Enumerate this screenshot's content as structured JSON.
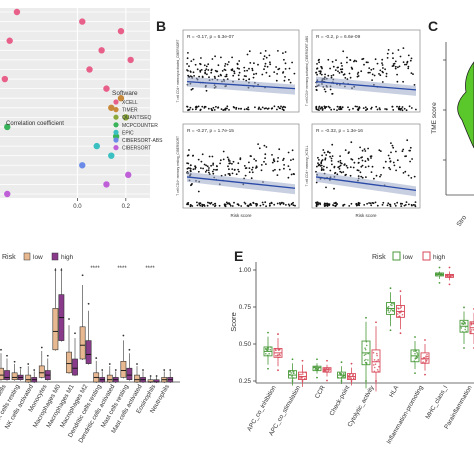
{
  "panel_labels": {
    "b": "B",
    "c": "C",
    "e": "E"
  },
  "chart_data": [
    {
      "panel": "A-top",
      "type": "scatter",
      "xlabel": "Correlation coefficient",
      "xticks": [
        "0.0",
        "0.2"
      ],
      "legend_title": "Software",
      "legend": [
        {
          "name": "XCELL",
          "color": "#e8608a"
        },
        {
          "name": "TIMER",
          "color": "#c8893a"
        },
        {
          "name": "QUANTISEQ",
          "color": "#8aa83a"
        },
        {
          "name": "MCPCOUNTER",
          "color": "#3ab45a"
        },
        {
          "name": "EPIC",
          "color": "#3ac0c0"
        },
        {
          "name": "CIBERSORT-ABS",
          "color": "#6a8ae8"
        },
        {
          "name": "CIBERSORT",
          "color": "#c060d8"
        }
      ],
      "points": [
        {
          "x": -0.25,
          "row": 0,
          "s": "XCELL"
        },
        {
          "x": 0.02,
          "row": 1,
          "s": "XCELL"
        },
        {
          "x": 0.18,
          "row": 2,
          "s": "XCELL"
        },
        {
          "x": -0.28,
          "row": 3,
          "s": "XCELL"
        },
        {
          "x": 0.1,
          "row": 4,
          "s": "XCELL"
        },
        {
          "x": 0.22,
          "row": 5,
          "s": "XCELL"
        },
        {
          "x": 0.05,
          "row": 6,
          "s": "XCELL"
        },
        {
          "x": -0.3,
          "row": 7,
          "s": "XCELL"
        },
        {
          "x": 0.12,
          "row": 8,
          "s": "XCELL"
        },
        {
          "x": 0.18,
          "row": 9,
          "s": "TIMER"
        },
        {
          "x": 0.14,
          "row": 10,
          "s": "TIMER"
        },
        {
          "x": 0.2,
          "row": 11,
          "s": "QUANTISEQ"
        },
        {
          "x": -0.29,
          "row": 12,
          "s": "MCPCOUNTER"
        },
        {
          "x": 0.16,
          "row": 13,
          "s": "MCPCOUNTER"
        },
        {
          "x": 0.08,
          "row": 14,
          "s": "EPIC"
        },
        {
          "x": 0.14,
          "row": 15,
          "s": "EPIC"
        },
        {
          "x": 0.02,
          "row": 16,
          "s": "CIBERSORT-ABS"
        },
        {
          "x": 0.21,
          "row": 17,
          "s": "CIBERSORT"
        },
        {
          "x": 0.12,
          "row": 18,
          "s": "CIBERSORT"
        },
        {
          "x": -0.29,
          "row": 19,
          "s": "CIBERSORT"
        }
      ]
    },
    {
      "panel": "B",
      "type": "scatter",
      "xlabel": "Risk score",
      "subplots": [
        {
          "stat": "R = -0.17, p = 6.3e-07",
          "ylabel": "T cell CD4+ memory activated_CIBERSORT"
        },
        {
          "stat": "R = -0.2, p = 6.6e-09",
          "ylabel": "T cell CD4+ memory activated_CIBERSORT-ABS"
        },
        {
          "stat": "R = -0.27, p = 1.7e-15",
          "ylabel": "T cell CD4+ memory resting_CIBERSORT"
        },
        {
          "stat": "R = -0.32, p = 1.3e-16",
          "ylabel": "T cell CD4+ memory_XCELL"
        }
      ]
    },
    {
      "panel": "C",
      "type": "violin",
      "ylabel": "TME score",
      "xtick": "Stro"
    },
    {
      "panel": "A-bottom",
      "type": "boxplot",
      "legend_title": "Risk",
      "legend": [
        {
          "name": "low",
          "color": "#e8b890"
        },
        {
          "name": "high",
          "color": "#8a3a8a"
        }
      ],
      "signif": "****",
      "categories": [
        "T cells",
        "NK cells resting",
        "NK cells activated",
        "Monocytes",
        "Macrophages M0",
        "Macrophages M1",
        "Macrophages M2",
        "Dendritic cells resting",
        "Dendritic cells activated",
        "Mast cells resting",
        "Mast cells activated",
        "Eosinophils",
        "Neutrophils"
      ],
      "low": [
        {
          "q1": 0.01,
          "med": 0.03,
          "q3": 0.06
        },
        {
          "q1": 0.01,
          "med": 0.02,
          "q3": 0.04
        },
        {
          "q1": 0.0,
          "med": 0.01,
          "q3": 0.03
        },
        {
          "q1": 0.02,
          "med": 0.04,
          "q3": 0.07
        },
        {
          "q1": 0.14,
          "med": 0.22,
          "q3": 0.32
        },
        {
          "q1": 0.04,
          "med": 0.08,
          "q3": 0.13
        },
        {
          "q1": 0.1,
          "med": 0.16,
          "q3": 0.24
        },
        {
          "q1": 0.0,
          "med": 0.02,
          "q3": 0.04
        },
        {
          "q1": 0.0,
          "med": 0.01,
          "q3": 0.03
        },
        {
          "q1": 0.02,
          "med": 0.05,
          "q3": 0.09
        },
        {
          "q1": 0.0,
          "med": 0.01,
          "q3": 0.03
        },
        {
          "q1": 0.0,
          "med": 0.0,
          "q3": 0.01
        },
        {
          "q1": 0.0,
          "med": 0.01,
          "q3": 0.02
        }
      ],
      "high": [
        {
          "q1": 0.01,
          "med": 0.02,
          "q3": 0.05
        },
        {
          "q1": 0.01,
          "med": 0.02,
          "q3": 0.03
        },
        {
          "q1": 0.0,
          "med": 0.01,
          "q3": 0.02
        },
        {
          "q1": 0.01,
          "med": 0.03,
          "q3": 0.05
        },
        {
          "q1": 0.18,
          "med": 0.28,
          "q3": 0.38
        },
        {
          "q1": 0.03,
          "med": 0.06,
          "q3": 0.1
        },
        {
          "q1": 0.08,
          "med": 0.12,
          "q3": 0.18
        },
        {
          "q1": 0.0,
          "med": 0.01,
          "q3": 0.02
        },
        {
          "q1": 0.0,
          "med": 0.01,
          "q3": 0.02
        },
        {
          "q1": 0.01,
          "med": 0.03,
          "q3": 0.06
        },
        {
          "q1": 0.0,
          "med": 0.01,
          "q3": 0.02
        },
        {
          "q1": 0.0,
          "med": 0.0,
          "q3": 0.01
        },
        {
          "q1": 0.0,
          "med": 0.01,
          "q3": 0.02
        }
      ]
    },
    {
      "panel": "E",
      "type": "boxplot",
      "ylabel": "Score",
      "ylim": [
        0.25,
        1.0
      ],
      "yticks": [
        "0.25",
        "0.50",
        "0.75",
        "1.00"
      ],
      "legend_title": "Risk",
      "legend": [
        {
          "name": "low",
          "color": "#4a9a3a"
        },
        {
          "name": "high",
          "color": "#d84a5a"
        }
      ],
      "categories": [
        "APC_co_inhibition",
        "APC_co_stimulation",
        "CCR",
        "Check-point",
        "Cytolytic_activity",
        "HLA",
        "Inflammation-promoting",
        "MHC_class_I",
        "Parainflammation"
      ],
      "low": [
        {
          "min": 0.36,
          "q1": 0.42,
          "med": 0.45,
          "q3": 0.48,
          "max": 0.55
        },
        {
          "min": 0.22,
          "q1": 0.27,
          "med": 0.29,
          "q3": 0.32,
          "max": 0.37
        },
        {
          "min": 0.3,
          "q1": 0.32,
          "med": 0.34,
          "q3": 0.35,
          "max": 0.37
        },
        {
          "min": 0.23,
          "q1": 0.27,
          "med": 0.29,
          "q3": 0.31,
          "max": 0.35
        },
        {
          "min": 0.2,
          "q1": 0.36,
          "med": 0.44,
          "q3": 0.52,
          "max": 0.65
        },
        {
          "min": 0.62,
          "q1": 0.7,
          "med": 0.74,
          "q3": 0.78,
          "max": 0.85
        },
        {
          "min": 0.33,
          "q1": 0.38,
          "med": 0.42,
          "q3": 0.46,
          "max": 0.52
        },
        {
          "min": 0.94,
          "q1": 0.96,
          "med": 0.97,
          "q3": 0.98,
          "max": 0.99
        },
        {
          "min": 0.5,
          "q1": 0.58,
          "med": 0.62,
          "q3": 0.66,
          "max": 0.72
        }
      ],
      "high": [
        {
          "min": 0.35,
          "q1": 0.41,
          "med": 0.44,
          "q3": 0.47,
          "max": 0.54
        },
        {
          "min": 0.21,
          "q1": 0.26,
          "med": 0.28,
          "q3": 0.31,
          "max": 0.36
        },
        {
          "min": 0.28,
          "q1": 0.31,
          "med": 0.33,
          "q3": 0.34,
          "max": 0.36
        },
        {
          "min": 0.22,
          "q1": 0.26,
          "med": 0.28,
          "q3": 0.3,
          "max": 0.34
        },
        {
          "min": 0.18,
          "q1": 0.31,
          "med": 0.38,
          "q3": 0.46,
          "max": 0.62
        },
        {
          "min": 0.6,
          "q1": 0.68,
          "med": 0.72,
          "q3": 0.76,
          "max": 0.83
        },
        {
          "min": 0.32,
          "q1": 0.37,
          "med": 0.4,
          "q3": 0.44,
          "max": 0.5
        },
        {
          "min": 0.93,
          "q1": 0.95,
          "med": 0.96,
          "q3": 0.97,
          "max": 0.99
        },
        {
          "min": 0.5,
          "q1": 0.57,
          "med": 0.61,
          "q3": 0.65,
          "max": 0.71
        }
      ]
    }
  ]
}
